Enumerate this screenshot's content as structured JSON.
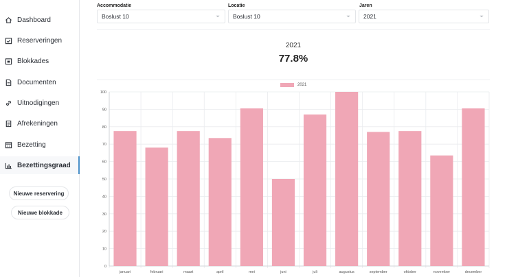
{
  "sidebar": {
    "items": [
      {
        "label": "Dashboard",
        "icon": "home-icon",
        "active": false
      },
      {
        "label": "Reserveringen",
        "icon": "calendar-check-icon",
        "active": false
      },
      {
        "label": "Blokkades",
        "icon": "calendar-block-icon",
        "active": false
      },
      {
        "label": "Documenten",
        "icon": "document-icon",
        "active": false
      },
      {
        "label": "Uitnodigingen",
        "icon": "link-icon",
        "active": false
      },
      {
        "label": "Afrekeningen",
        "icon": "receipt-icon",
        "active": false
      },
      {
        "label": "Bezetting",
        "icon": "calendar-grid-icon",
        "active": false
      },
      {
        "label": "Bezettingsgraad",
        "icon": "bar-chart-icon",
        "active": true
      }
    ],
    "new_reservation_label": "Nieuwe reservering",
    "new_block_label": "Nieuwe blokkade"
  },
  "filters": {
    "accommodatie": {
      "label": "Accommodatie",
      "value": "Boslust 10"
    },
    "locatie": {
      "label": "Locatie",
      "value": "Boslust 10"
    },
    "jaren": {
      "label": "Jaren",
      "value": "2021"
    }
  },
  "summary": {
    "year": "2021",
    "percentage": "77.8%"
  },
  "colors": {
    "bar": "#f0a7b6",
    "grid": "#e9ebee",
    "accent": "#4a90c8"
  },
  "chart_data": {
    "type": "bar",
    "categories": [
      "januari",
      "februari",
      "maart",
      "april",
      "mei",
      "juni",
      "juli",
      "augustus",
      "september",
      "oktober",
      "november",
      "december"
    ],
    "series": [
      {
        "name": "2021",
        "values": [
          77.5,
          68,
          77.5,
          73.5,
          90.5,
          50,
          87,
          100,
          77,
          77.5,
          63.5,
          90.5
        ]
      }
    ],
    "ylim": [
      0,
      100
    ],
    "yticks": [
      0,
      10,
      20,
      30,
      40,
      50,
      60,
      70,
      80,
      90,
      100
    ],
    "grid": true,
    "legend": "top-center"
  }
}
